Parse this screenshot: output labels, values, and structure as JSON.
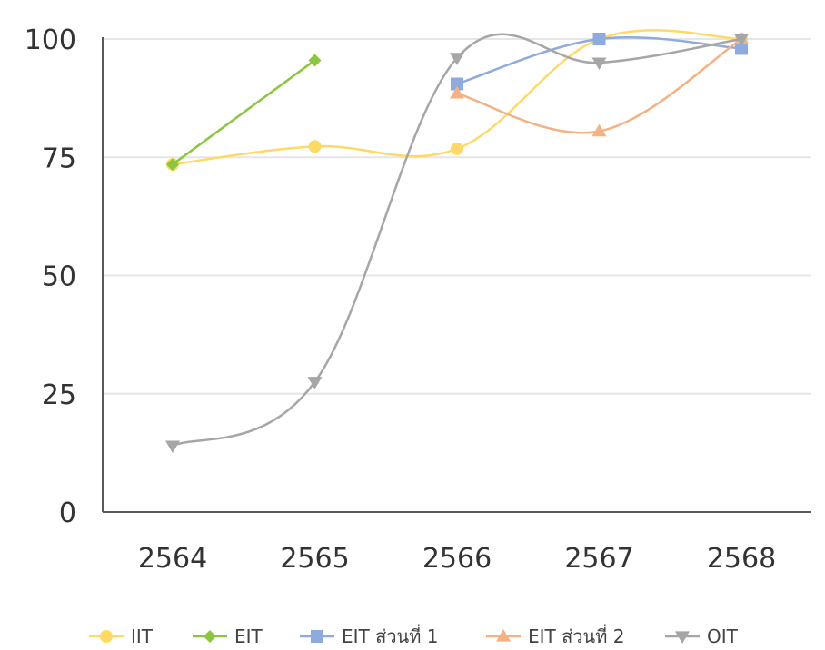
{
  "chart_data": {
    "type": "line",
    "title": "",
    "xlabel": "",
    "ylabel": "",
    "categories": [
      "2564",
      "2565",
      "2566",
      "2567",
      "2568"
    ],
    "ylim": [
      0,
      100
    ],
    "yticks": [
      0,
      25,
      50,
      75,
      100
    ],
    "grid": "horizontal",
    "smooth": true,
    "legend": "bottom",
    "series": [
      {
        "name": "IIT",
        "color": "#FFD966",
        "marker": "circle",
        "values": [
          73.5,
          77.3,
          76.8,
          100,
          100
        ]
      },
      {
        "name": "EIT",
        "color": "#8CC63F",
        "marker": "diamond",
        "values": [
          73.5,
          95.5,
          null,
          null,
          null
        ]
      },
      {
        "name": "EIT ส่วนที่ 1",
        "color": "#8FAADC",
        "marker": "square",
        "values": [
          null,
          null,
          90.5,
          100,
          98
        ]
      },
      {
        "name": "EIT ส่วนที่ 2",
        "color": "#F4B183",
        "marker": "triangle-up",
        "values": [
          null,
          null,
          88.5,
          80.5,
          100
        ]
      },
      {
        "name": "OIT",
        "color": "#A6A6A6",
        "marker": "triangle-down",
        "values": [
          14,
          27.5,
          96,
          95,
          100
        ]
      }
    ]
  }
}
